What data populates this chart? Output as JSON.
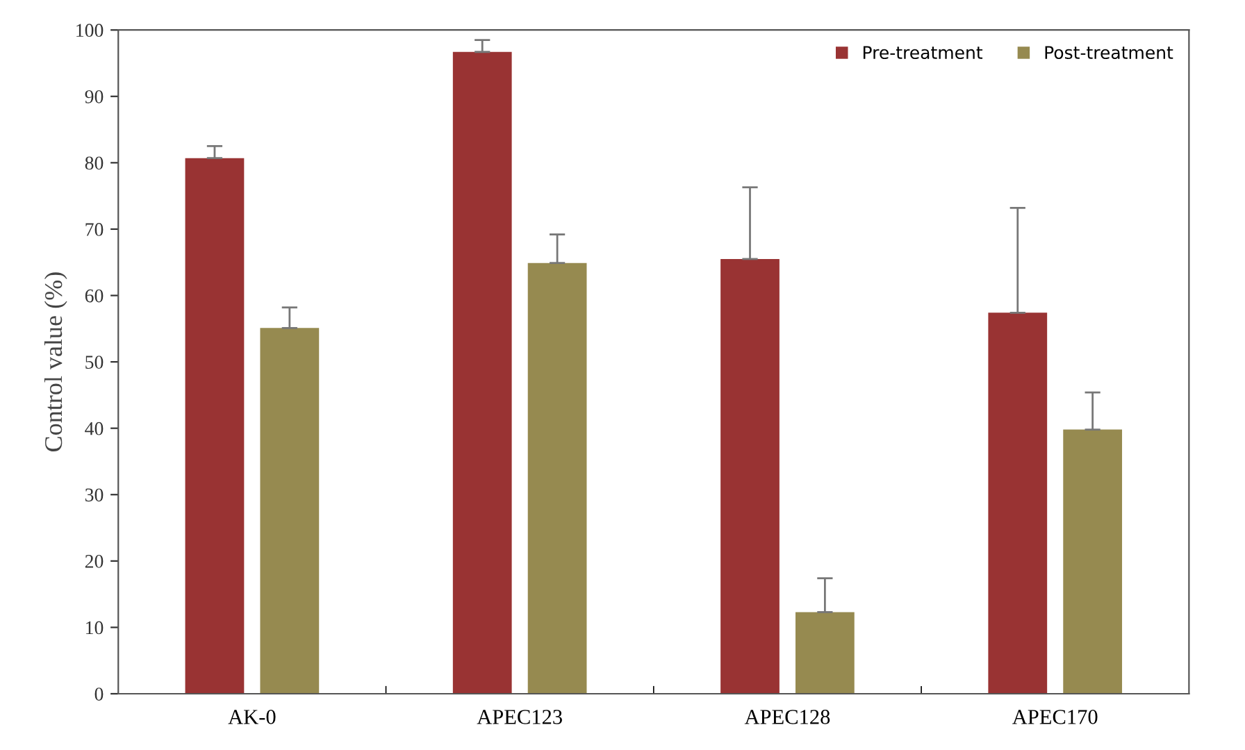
{
  "chart_data": {
    "type": "bar",
    "ylabel": "Control value (%)",
    "categories": [
      "AK-0",
      "APEC123",
      "APEC128",
      "APEC170"
    ],
    "series": [
      {
        "name": "Pre-treatment",
        "color": "#993333",
        "values": [
          80.7,
          96.7,
          65.5,
          57.4
        ],
        "errors": [
          [
            80.7,
            82.5
          ],
          [
            96.7,
            98.5
          ],
          [
            65.5,
            76.3
          ],
          [
            57.4,
            73.2
          ]
        ]
      },
      {
        "name": "Post-treatment",
        "color": "#968a50",
        "values": [
          55.1,
          64.9,
          12.3,
          39.8
        ],
        "errors": [
          [
            55.1,
            58.2
          ],
          [
            64.9,
            69.2
          ],
          [
            12.3,
            17.4
          ],
          [
            39.8,
            45.4
          ]
        ]
      }
    ],
    "ylim": [
      0,
      100
    ],
    "yticks": [
      0,
      10,
      20,
      30,
      40,
      50,
      60,
      70,
      80,
      90,
      100
    ],
    "grid": false,
    "legend": "top right"
  }
}
